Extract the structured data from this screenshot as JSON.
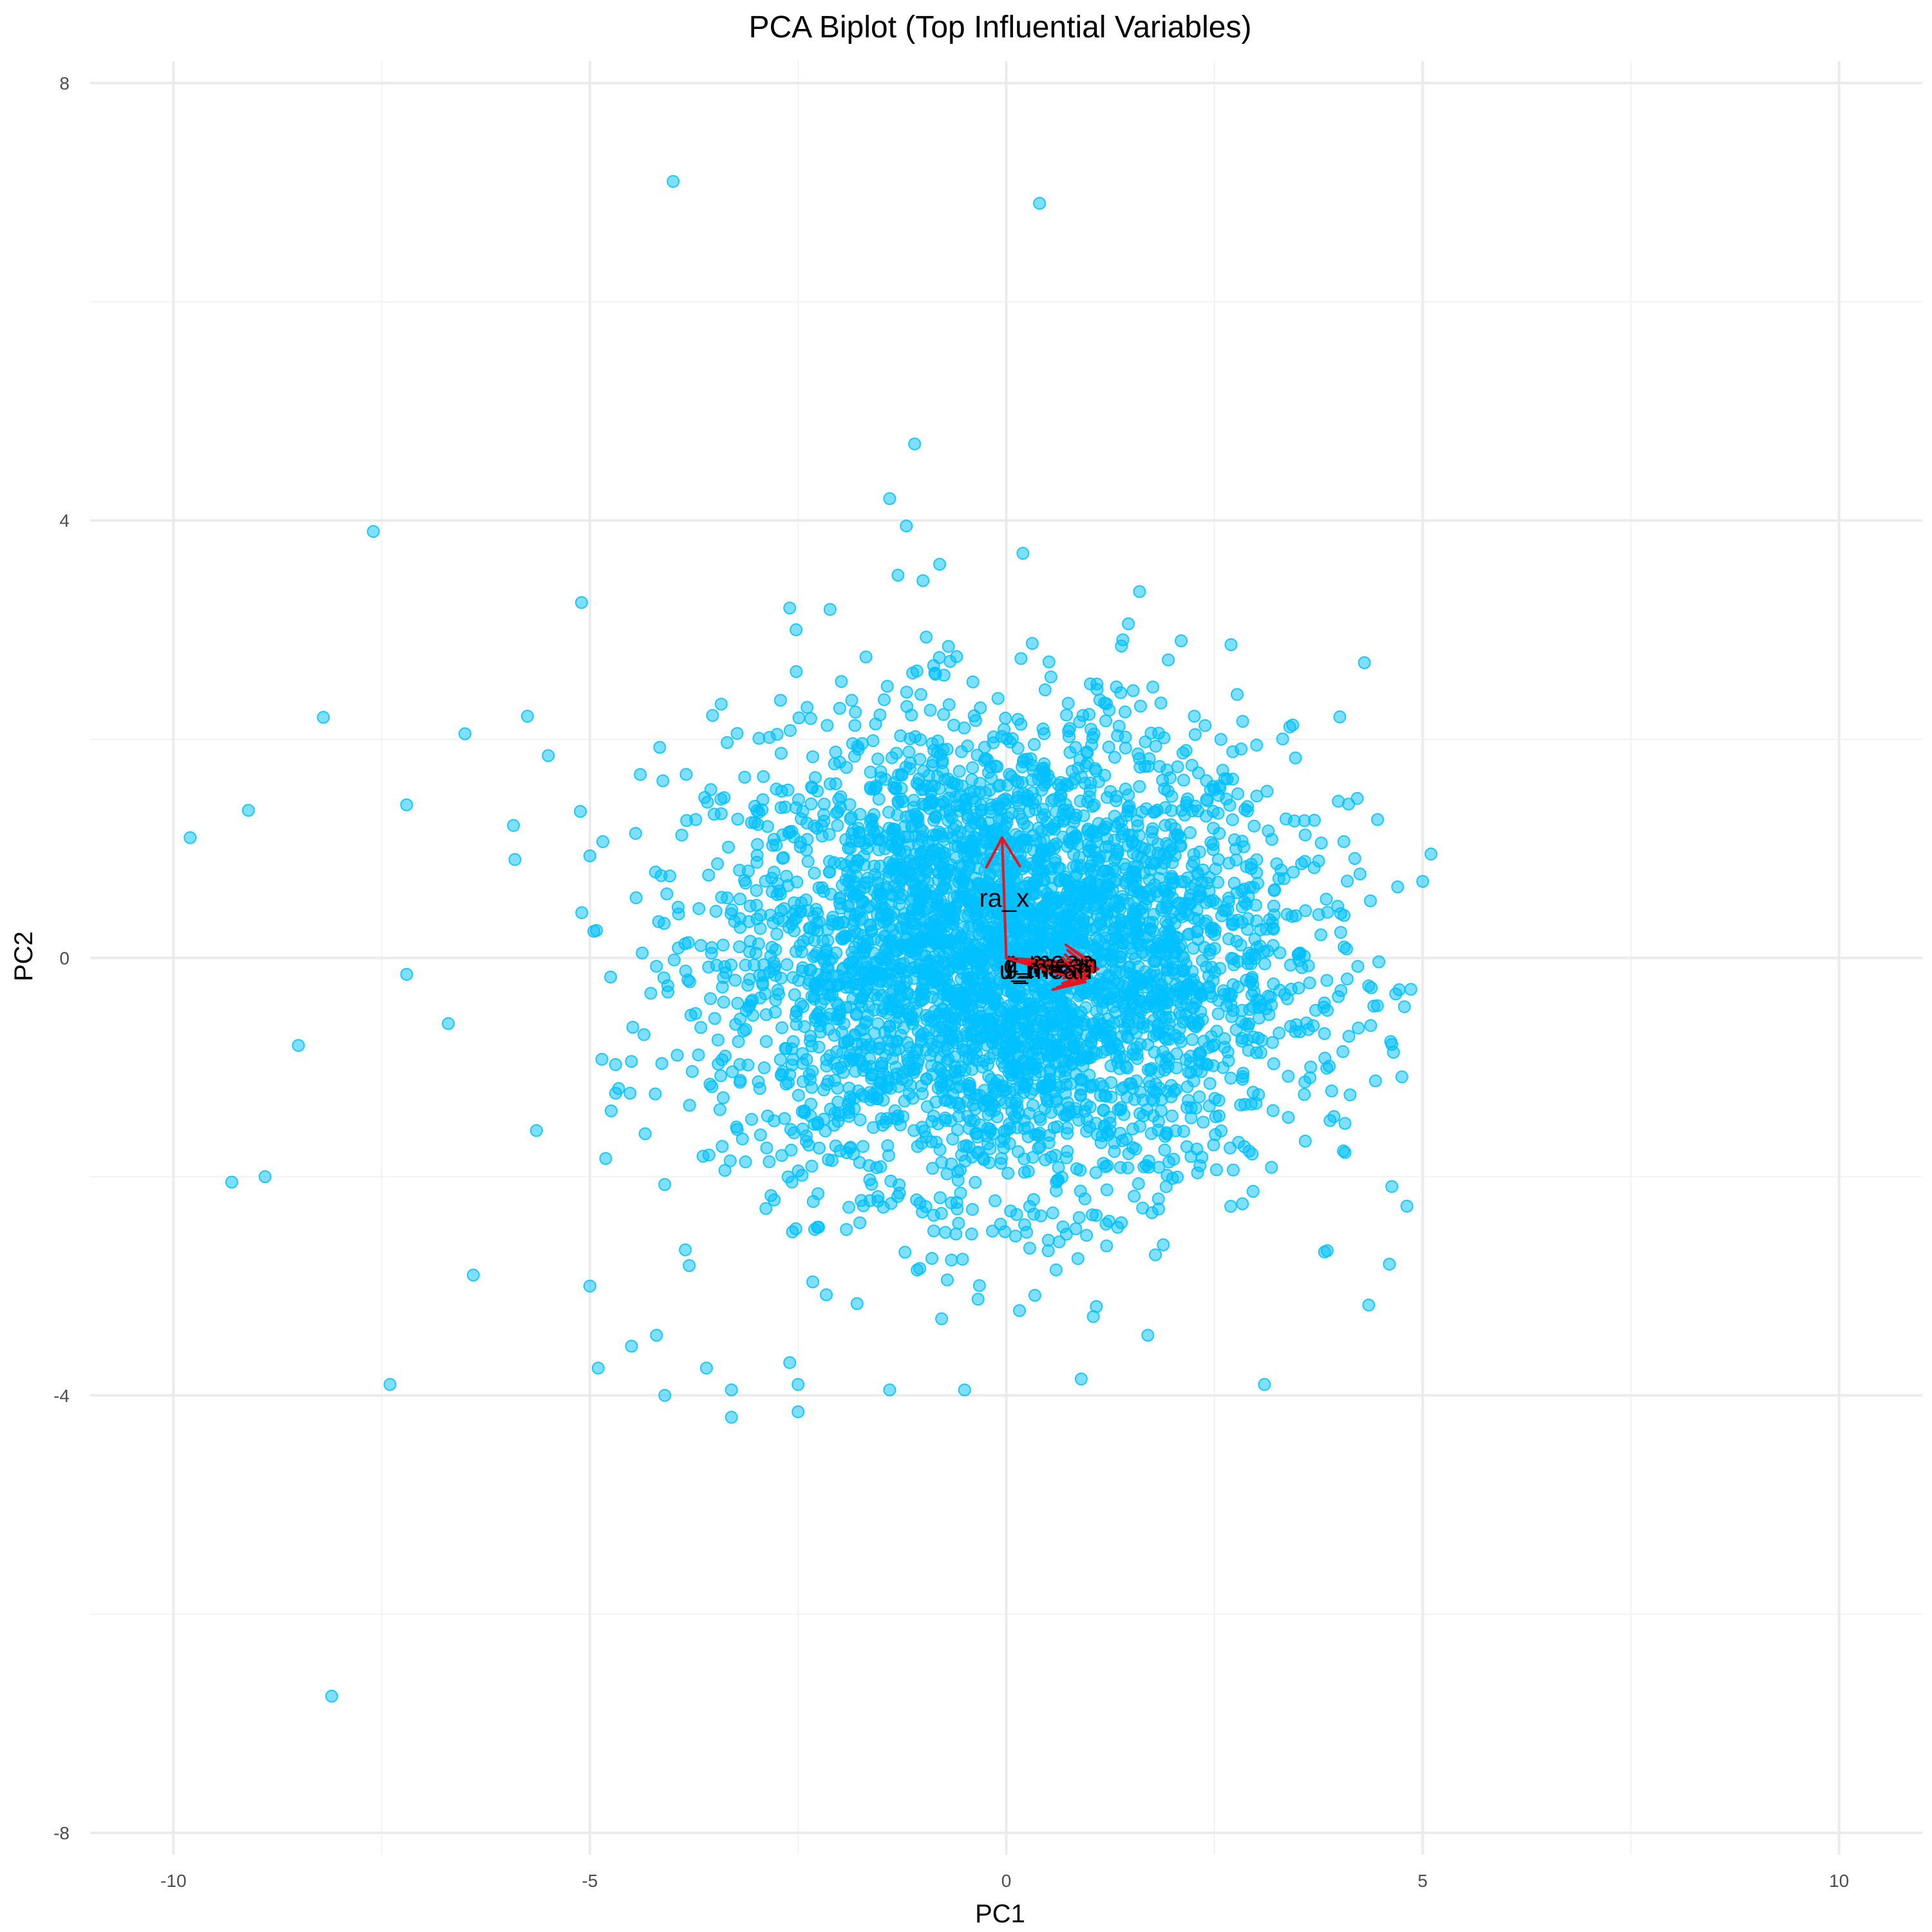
{
  "chart_data": {
    "type": "scatter",
    "title": "PCA Biplot (Top Influential Variables)",
    "xlabel": "PC1",
    "ylabel": "PC2",
    "xlim": [
      -11,
      11
    ],
    "ylim": [
      -8.2,
      8.2
    ],
    "x_ticks": [
      -10,
      -5,
      0,
      5,
      10
    ],
    "x_tick_labels": [
      "-10",
      "-5",
      "0",
      "5",
      "10"
    ],
    "y_ticks": [
      -8,
      -4,
      0,
      4,
      8
    ],
    "y_tick_labels": [
      "-8",
      "-4",
      "0",
      "4",
      "8"
    ],
    "x_minor_ticks": [
      -7.5,
      -2.5,
      2.5,
      7.5
    ],
    "y_minor_ticks": [
      -6,
      -2,
      2,
      6
    ],
    "grid": true,
    "legend": "none",
    "point_color": "#00BFFF",
    "arrow_color": "#E8141E",
    "points": [
      [
        -4.0,
        7.1
      ],
      [
        0.4,
        6.9
      ],
      [
        -1.1,
        4.7
      ],
      [
        -1.4,
        4.2
      ],
      [
        -1.2,
        3.95
      ],
      [
        -7.6,
        3.9
      ],
      [
        0.2,
        3.7
      ],
      [
        -0.8,
        3.6
      ],
      [
        1.6,
        3.35
      ],
      [
        -1.3,
        3.5
      ],
      [
        -1.0,
        3.45
      ],
      [
        -2.6,
        3.2
      ],
      [
        -5.1,
        3.25
      ],
      [
        -9.8,
        1.1
      ],
      [
        -9.1,
        1.35
      ],
      [
        -8.2,
        2.2
      ],
      [
        -7.2,
        1.4
      ],
      [
        -6.5,
        2.05
      ],
      [
        -6.7,
        -0.6
      ],
      [
        -7.2,
        -0.15
      ],
      [
        -8.5,
        -0.8
      ],
      [
        -9.3,
        -2.05
      ],
      [
        -8.9,
        -2.0
      ],
      [
        -6.4,
        -2.9
      ],
      [
        -7.4,
        -3.9
      ],
      [
        -8.1,
        -6.75
      ],
      [
        -4.1,
        -4.0
      ],
      [
        -3.3,
        -4.2
      ],
      [
        -2.5,
        -4.15
      ],
      [
        -1.4,
        -3.95
      ],
      [
        -0.5,
        -3.95
      ],
      [
        0.9,
        -3.85
      ],
      [
        3.1,
        -3.9
      ],
      [
        1.7,
        -3.45
      ],
      [
        4.6,
        -2.8
      ],
      [
        5.1,
        0.95
      ],
      [
        5.0,
        0.7
      ],
      [
        4.7,
        0.65
      ],
      [
        4.3,
        2.7
      ],
      [
        2.1,
        2.9
      ],
      [
        -5.5,
        1.85
      ],
      [
        -5.9,
        0.9
      ],
      [
        -5.0,
        -3.0
      ],
      [
        -4.9,
        -3.75
      ],
      [
        -4.5,
        -3.55
      ],
      [
        -3.6,
        -3.75
      ],
      [
        -2.6,
        -3.7
      ],
      [
        -2.5,
        -3.9
      ],
      [
        -3.3,
        -3.95
      ],
      [
        -4.2,
        -3.45
      ]
    ],
    "cloud": {
      "count": 4200,
      "center": [
        0.0,
        0.0
      ],
      "spread": [
        1.7,
        1.05
      ],
      "x_range": [
        -6.0,
        5.0
      ],
      "y_range": [
        -3.3,
        3.3
      ]
    },
    "arrows": [
      {
        "label": "ra_x",
        "x": -0.05,
        "y": 1.1
      },
      {
        "label": "g_mean",
        "x": 1.05,
        "y": -0.12
      },
      {
        "label": "r_mean",
        "x": 1.05,
        "y": -0.05
      },
      {
        "label": "i_mean",
        "x": 1.0,
        "y": -0.18
      },
      {
        "label": "z_mean",
        "x": 1.1,
        "y": -0.1
      },
      {
        "label": "u_mean",
        "x": 0.95,
        "y": -0.22
      }
    ]
  }
}
